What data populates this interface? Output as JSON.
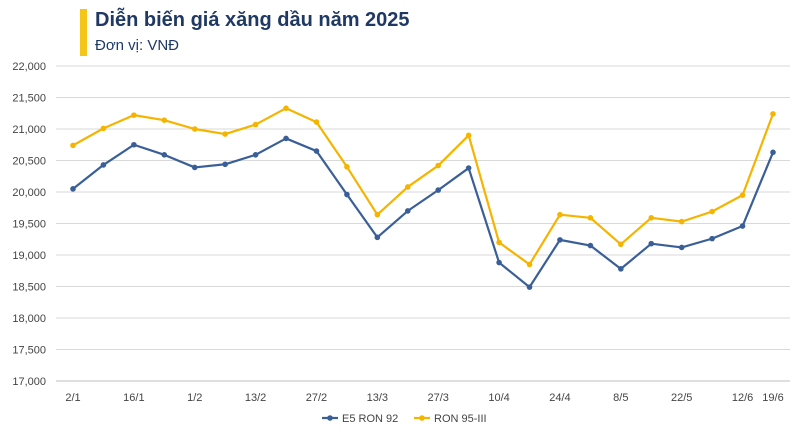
{
  "title": "Diễn biến giá xăng dầu năm 2025",
  "subtitle": "Đơn vị: VNĐ",
  "colors": {
    "accent": "#f5c518",
    "series_1": "#3a5f98",
    "series_2": "#f5b400",
    "grid": "#d9d9d9",
    "title": "#1f3864"
  },
  "chart_data": {
    "type": "line",
    "title": "Diễn biến giá xăng dầu năm 2025",
    "subtitle": "Đơn vị: VNĐ",
    "xlabel": "",
    "ylabel": "",
    "ylim": [
      17000,
      22000
    ],
    "y_ticks": [
      "17,000",
      "17,500",
      "18,000",
      "18,500",
      "19,000",
      "19,500",
      "20,000",
      "20,500",
      "21,000",
      "21,500",
      "22,000"
    ],
    "grid": true,
    "legend_position": "bottom",
    "x_tick_labels": [
      "2/1",
      "",
      "16/1",
      "",
      "1/2",
      "",
      "13/2",
      "",
      "27/2",
      "",
      "13/3",
      "",
      "27/3",
      "",
      "10/4",
      "",
      "24/4",
      "",
      "8/5",
      "",
      "22/5",
      "",
      "12/6",
      "19/6"
    ],
    "series": [
      {
        "name": "E5 RON 92",
        "values": [
          20050,
          20430,
          20750,
          20590,
          20390,
          20440,
          20590,
          20850,
          20650,
          19960,
          19280,
          19700,
          20030,
          20380,
          18880,
          18490,
          19240,
          19150,
          18780,
          19180,
          19120,
          19260,
          19460,
          20630
        ]
      },
      {
        "name": "RON 95-III",
        "values": [
          20740,
          21010,
          21220,
          21140,
          21000,
          20920,
          21070,
          21330,
          21110,
          20400,
          19640,
          20080,
          20420,
          20900,
          19200,
          18850,
          19640,
          19590,
          19170,
          19590,
          19530,
          19690,
          19950,
          21240
        ]
      }
    ]
  }
}
